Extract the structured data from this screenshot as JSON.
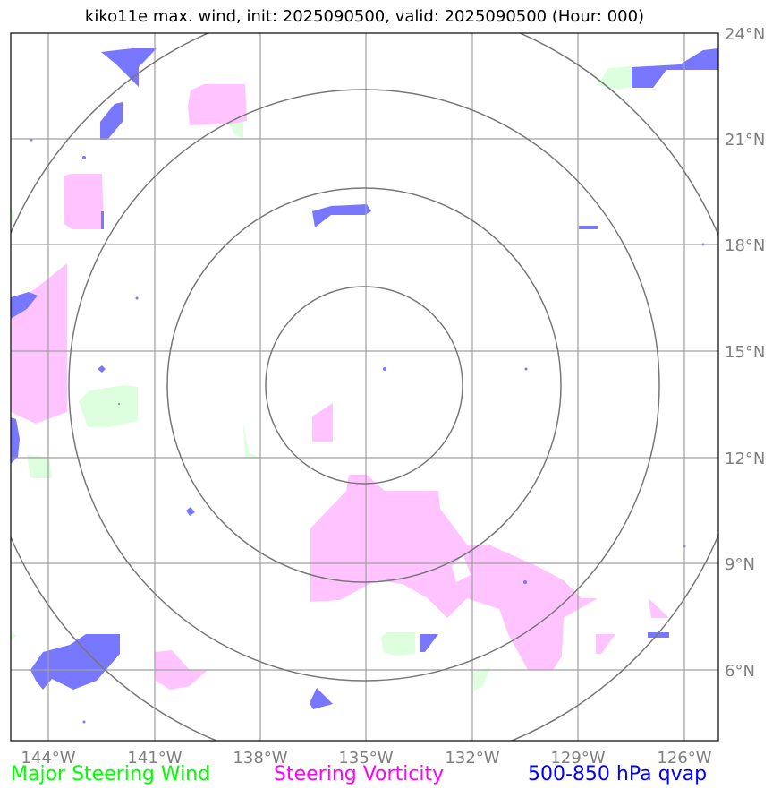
{
  "title": "kiko11e max. wind, init: 2025090500, valid: 2025090500 (Hour: 000)",
  "map": {
    "lon_range": [
      -145,
      -125
    ],
    "lat_range": [
      4,
      24
    ],
    "lon_ticks": [
      "144°W",
      "141°W",
      "138°W",
      "135°W",
      "132°W",
      "129°W",
      "126°W"
    ],
    "lat_ticks": [
      "24°N",
      "21°N",
      "18°N",
      "15°N",
      "12°N",
      "9°N",
      "6°N"
    ],
    "range_rings": 4,
    "center": {
      "lon": -135,
      "lat": 14.1
    }
  },
  "legend": {
    "wind_label": "Major Steering Wind",
    "vorticity_label": "Steering Vorticity",
    "qvap_label": "500-850 hPa qvap"
  },
  "colors": {
    "wind": "#00ff00",
    "vorticity": "#ff00ff",
    "qvap": "#0000ff",
    "wind_fill": "#ddffdd",
    "vorticity_fill": "#ffc4ff",
    "qvap_fill": "#7777ff"
  }
}
